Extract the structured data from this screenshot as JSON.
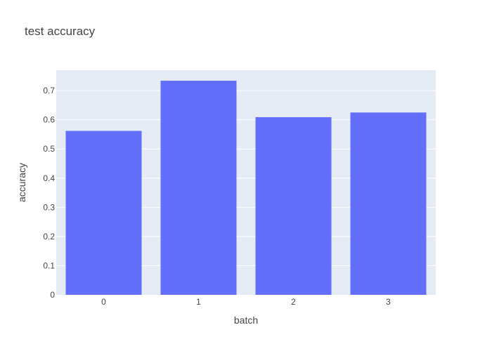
{
  "chart_data": {
    "type": "bar",
    "title": "test accuracy",
    "xlabel": "batch",
    "ylabel": "accuracy",
    "categories": [
      "0",
      "1",
      "2",
      "3"
    ],
    "values": [
      0.562,
      0.734,
      0.609,
      0.625
    ],
    "ylim": [
      0,
      0.77
    ],
    "yticks": [
      0,
      0.1,
      0.2,
      0.3,
      0.4,
      0.5,
      0.6,
      0.7
    ],
    "ytick_labels": [
      "0",
      "0.1",
      "0.2",
      "0.3",
      "0.4",
      "0.5",
      "0.6",
      "0.7"
    ],
    "grid": true,
    "colors": {
      "bar": "#636efa",
      "plot_background": "#e5ecf6",
      "gridline": "#ffffff",
      "text": "#444444"
    }
  }
}
